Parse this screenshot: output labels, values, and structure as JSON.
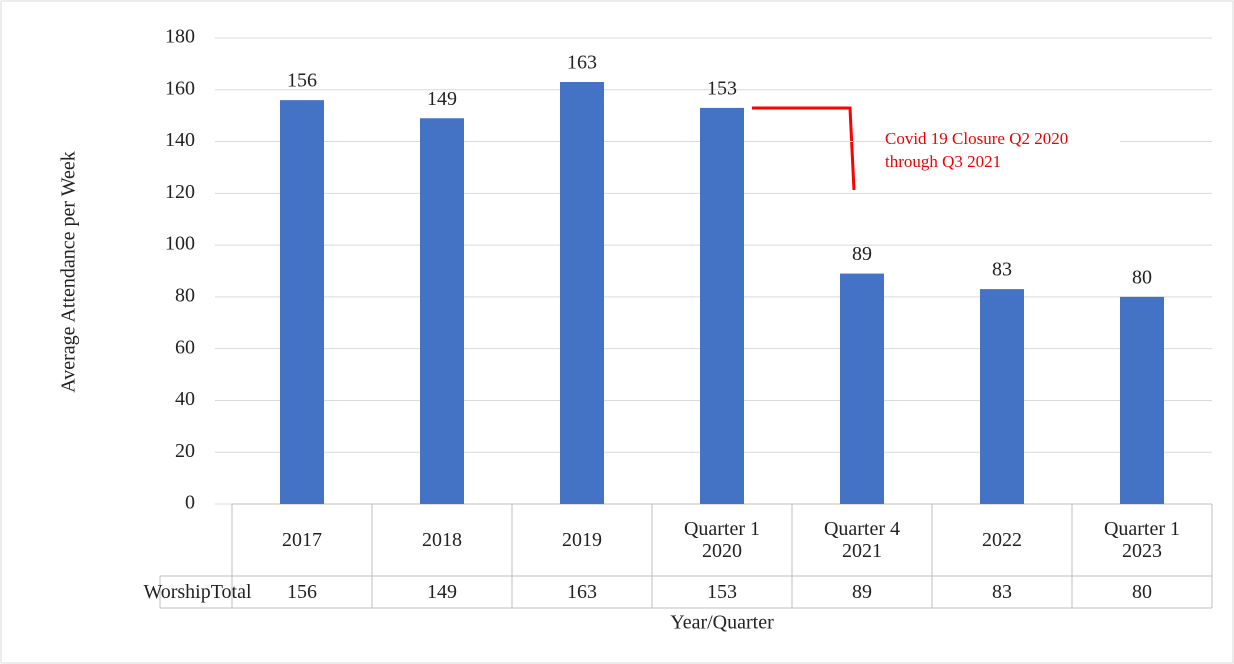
{
  "chart_data": {
    "type": "bar",
    "x_label": "Year/Quarter",
    "y_label": "Average Attendance per Week",
    "categories": [
      "2017",
      "2018",
      "2019",
      "Quarter 1 2020",
      "Quarter 4 2021",
      "2022",
      "Quarter 1 2023"
    ],
    "series": [
      {
        "name": "WorshipTotal",
        "color": "#4472c4",
        "values": [
          156,
          149,
          163,
          153,
          89,
          83,
          80
        ]
      }
    ],
    "ylim": [
      0,
      180
    ],
    "yticks": [
      0,
      20,
      40,
      60,
      80,
      100,
      120,
      140,
      160,
      180
    ],
    "grid": true,
    "annotation": "Covid 19 Closure Q2 2020 through Q3 2021"
  }
}
